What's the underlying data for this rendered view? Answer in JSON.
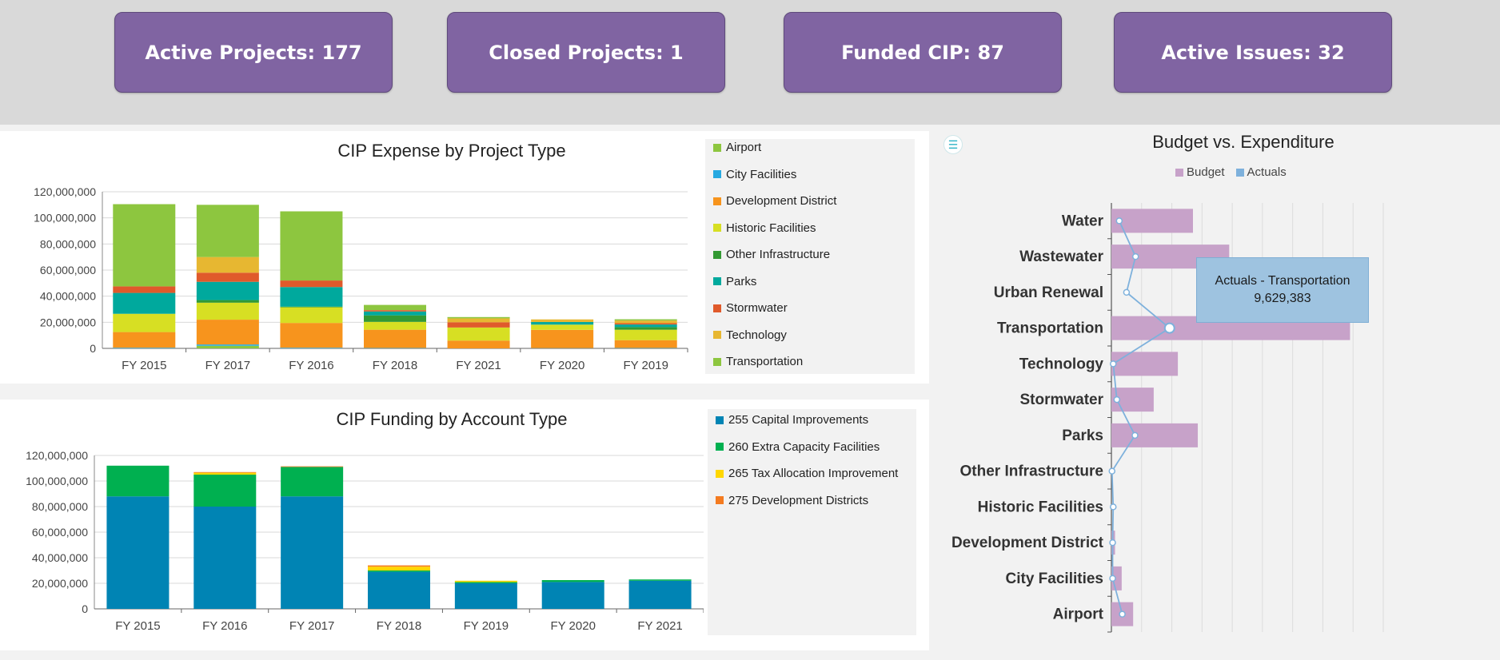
{
  "kpis": {
    "active_projects": "Active Projects: 177",
    "closed_projects": "Closed Projects: 1",
    "funded_cip": "Funded CIP: 87",
    "active_issues": "Active Issues: 32"
  },
  "colors": {
    "kpi_bg": "#8064a2",
    "budget": "#c7a2c9",
    "actuals": "#7eb1dc"
  },
  "menu_icon": "menu-lines-icon",
  "chart_data": [
    {
      "type": "bar",
      "stacked": true,
      "title": "CIP Expense by Project Type",
      "categories": [
        "FY 2015",
        "FY 2017",
        "FY 2016",
        "FY 2018",
        "FY 2021",
        "FY 2020",
        "FY 2019"
      ],
      "ylim": [
        0,
        120000000
      ],
      "yticks": [
        "0",
        "20,000,000",
        "40,000,000",
        "60,000,000",
        "80,000,000",
        "100,000,000",
        "120,000,000"
      ],
      "grid": true,
      "legend_position": "right",
      "series": [
        {
          "name": "Airport",
          "color": "#8dc63f",
          "values": [
            0,
            2000000,
            0,
            0,
            0,
            0,
            0
          ]
        },
        {
          "name": "City Facilities",
          "color": "#27a9e1",
          "values": [
            500000,
            1000000,
            500000,
            300000,
            0,
            200000,
            300000
          ]
        },
        {
          "name": "Development District",
          "color": "#f7941d",
          "values": [
            12000000,
            19000000,
            19000000,
            14000000,
            6000000,
            14000000,
            6000000
          ]
        },
        {
          "name": "Historic Facilities",
          "color": "#d7df23",
          "values": [
            14000000,
            13000000,
            12000000,
            6000000,
            10000000,
            4000000,
            8000000
          ]
        },
        {
          "name": "Other Infrastructure",
          "color": "#339933",
          "values": [
            0,
            2000000,
            500000,
            5000000,
            0,
            0,
            2000000
          ]
        },
        {
          "name": "Parks",
          "color": "#00a99d",
          "values": [
            16000000,
            14000000,
            15000000,
            3000000,
            0,
            2000000,
            2000000
          ]
        },
        {
          "name": "Stormwater",
          "color": "#e05a2b",
          "values": [
            5000000,
            7000000,
            5000000,
            1000000,
            4000000,
            0,
            1000000
          ]
        },
        {
          "name": "Technology",
          "color": "#e7b731",
          "values": [
            0,
            12000000,
            0,
            0,
            3000000,
            2000000,
            2000000
          ]
        },
        {
          "name": "Transportation",
          "color": "#8dc63f",
          "values": [
            63000000,
            40000000,
            53000000,
            4000000,
            1000000,
            0,
            1000000
          ]
        }
      ]
    },
    {
      "type": "bar",
      "stacked": true,
      "title": "CIP Funding by Account Type",
      "categories": [
        "FY 2015",
        "FY 2016",
        "FY 2017",
        "FY 2018",
        "FY 2019",
        "FY 2020",
        "FY 2021"
      ],
      "ylim": [
        0,
        120000000
      ],
      "yticks": [
        "0",
        "20,000,000",
        "40,000,000",
        "60,000,000",
        "80,000,000",
        "100,000,000",
        "120,000,000"
      ],
      "grid": true,
      "legend_position": "right",
      "series": [
        {
          "name": "255 Capital Improvements",
          "color": "#0084b4",
          "values": [
            88000000,
            80000000,
            88000000,
            29000000,
            20000000,
            21000000,
            22000000
          ]
        },
        {
          "name": "260 Extra Capacity Facilities",
          "color": "#00b050",
          "values": [
            24000000,
            25000000,
            23000000,
            1000000,
            1000000,
            1500000,
            1000000
          ]
        },
        {
          "name": "265 Tax Allocation Improvement",
          "color": "#ffd700",
          "values": [
            0,
            1500000,
            0,
            3000000,
            1000000,
            0,
            0
          ]
        },
        {
          "name": "275 Development Districts",
          "color": "#f47b20",
          "values": [
            0,
            500000,
            500000,
            1000000,
            0,
            0,
            0
          ]
        }
      ]
    },
    {
      "type": "bar",
      "orientation": "horizontal",
      "title": "Budget vs. Expenditure",
      "legend_position": "top",
      "grid": true,
      "categories": [
        "Water",
        "Wastewater",
        "Urban Renewal",
        "Transportation",
        "Technology",
        "Stormwater",
        "Parks",
        "Other Infrastructure",
        "Historic Facilities",
        "Development District",
        "City Facilities",
        "Airport"
      ],
      "xlim": [
        0,
        45000000
      ],
      "series": [
        {
          "name": "Budget",
          "kind": "bar",
          "color": "#c7a2c9",
          "values": [
            13500000,
            19500000,
            0,
            39500000,
            11000000,
            7000000,
            14300000,
            0,
            0,
            600000,
            1700000,
            3600000
          ]
        },
        {
          "name": "Actuals",
          "kind": "line",
          "color": "#7eb1dc",
          "values": [
            1300000,
            4000000,
            2500000,
            9629383,
            300000,
            900000,
            3900000,
            100000,
            300000,
            200000,
            200000,
            1800000
          ]
        }
      ],
      "tooltip": {
        "title": "Actuals - Transportation",
        "value": "9,629,383"
      }
    }
  ]
}
